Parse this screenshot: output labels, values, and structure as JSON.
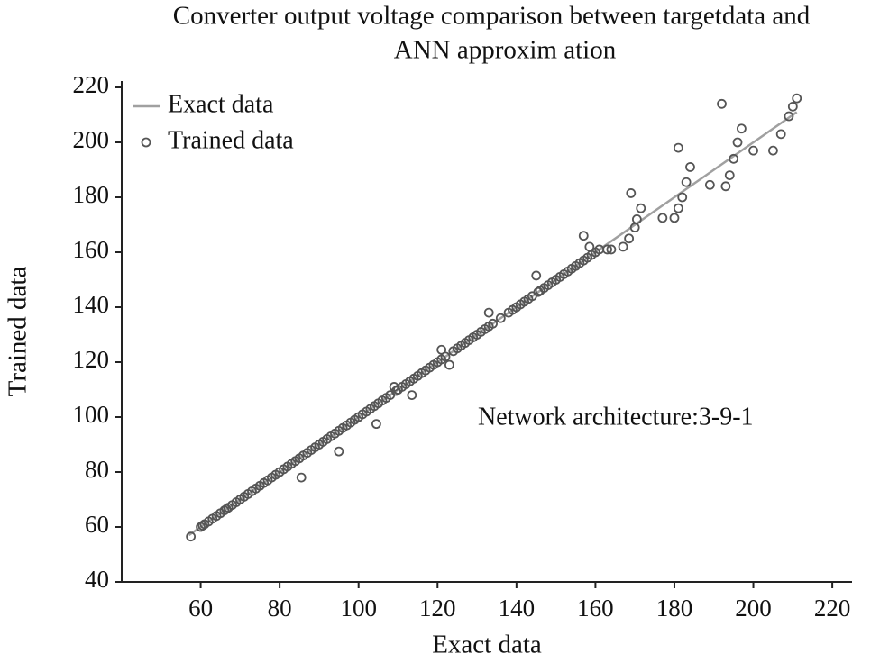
{
  "chart_data": {
    "type": "scatter",
    "title": [
      "Converter output voltage comparison between targetdata and",
      "ANN approxim ation"
    ],
    "x_label": "Exact data",
    "y_label": "Trained data",
    "annotation": "Network architecture:3-9-1",
    "xlim": [
      40,
      225
    ],
    "ylim": [
      40,
      220
    ],
    "xticks": [
      60,
      80,
      100,
      120,
      140,
      160,
      180,
      200,
      220
    ],
    "yticks": [
      40,
      60,
      80,
      100,
      120,
      140,
      160,
      180,
      200,
      220
    ],
    "legend": "upper left",
    "series": [
      {
        "name": "Exact data",
        "type": "line",
        "color": "#a0a0a0",
        "x": [
          57,
          211
        ],
        "values": [
          57,
          211
        ]
      },
      {
        "name": "Trained data",
        "type": "scatter",
        "color": "#555555",
        "x": [
          57.5,
          60,
          60.5,
          61,
          62,
          63,
          64,
          65,
          66,
          66.5,
          67,
          68,
          69,
          70,
          71,
          72,
          73,
          74,
          75,
          76,
          77,
          78,
          79,
          80,
          81,
          82,
          83,
          84,
          85,
          86,
          87,
          88,
          89,
          90,
          91,
          92,
          93,
          94,
          95,
          96,
          97,
          98,
          99,
          100,
          101,
          102,
          103,
          104,
          105,
          106,
          107,
          108,
          109.5,
          110,
          111,
          112,
          113,
          114,
          115,
          116,
          117,
          118,
          119,
          120,
          121,
          122,
          124,
          125,
          126,
          127,
          128,
          129,
          130,
          131,
          132,
          133,
          134,
          136,
          138,
          139,
          140,
          141,
          142,
          143,
          144,
          145.5,
          146,
          147,
          148,
          149,
          150,
          151,
          152,
          153,
          154,
          155,
          156,
          157,
          158,
          159,
          160,
          161,
          85.5,
          95,
          104.5,
          109,
          113.5,
          121,
          123,
          133,
          145,
          157,
          158.5,
          163,
          164,
          167,
          168.5,
          169,
          170,
          170.5,
          171.5,
          177,
          180,
          181,
          181,
          182,
          183,
          184,
          189,
          192,
          193,
          194,
          195,
          196,
          197,
          200,
          205,
          207,
          209,
          210,
          211
        ],
        "values": [
          56.5,
          60,
          60.5,
          61,
          62,
          63,
          64,
          65,
          66,
          66.5,
          67,
          68,
          69,
          70,
          71,
          72,
          73,
          74,
          75,
          76,
          77,
          78,
          79,
          80,
          81,
          82,
          83,
          84,
          85,
          86,
          87,
          88,
          89,
          90,
          91,
          92,
          93,
          94,
          95,
          96,
          97,
          98,
          99,
          100,
          101,
          102,
          103,
          104,
          105,
          106,
          107,
          108,
          109.5,
          110,
          111,
          112,
          113,
          114,
          115,
          116,
          117,
          118,
          119,
          120,
          121,
          122,
          124,
          125,
          126,
          127,
          128,
          129,
          130,
          131,
          132,
          133,
          134,
          136,
          138,
          139,
          140,
          141,
          142,
          143,
          144,
          145.5,
          146,
          147,
          148,
          149,
          150,
          151,
          152,
          153,
          154,
          155,
          156,
          157,
          158,
          159,
          160,
          161,
          78,
          87.5,
          97.5,
          111,
          108,
          124.5,
          119,
          138,
          151.5,
          166,
          162,
          161,
          161,
          162,
          165,
          181.5,
          169,
          172,
          176,
          172.5,
          172.5,
          176,
          198,
          180,
          185.5,
          191,
          184.5,
          214,
          184,
          188,
          194,
          200,
          205,
          197,
          197,
          203,
          209.5,
          213,
          216
        ]
      }
    ]
  }
}
